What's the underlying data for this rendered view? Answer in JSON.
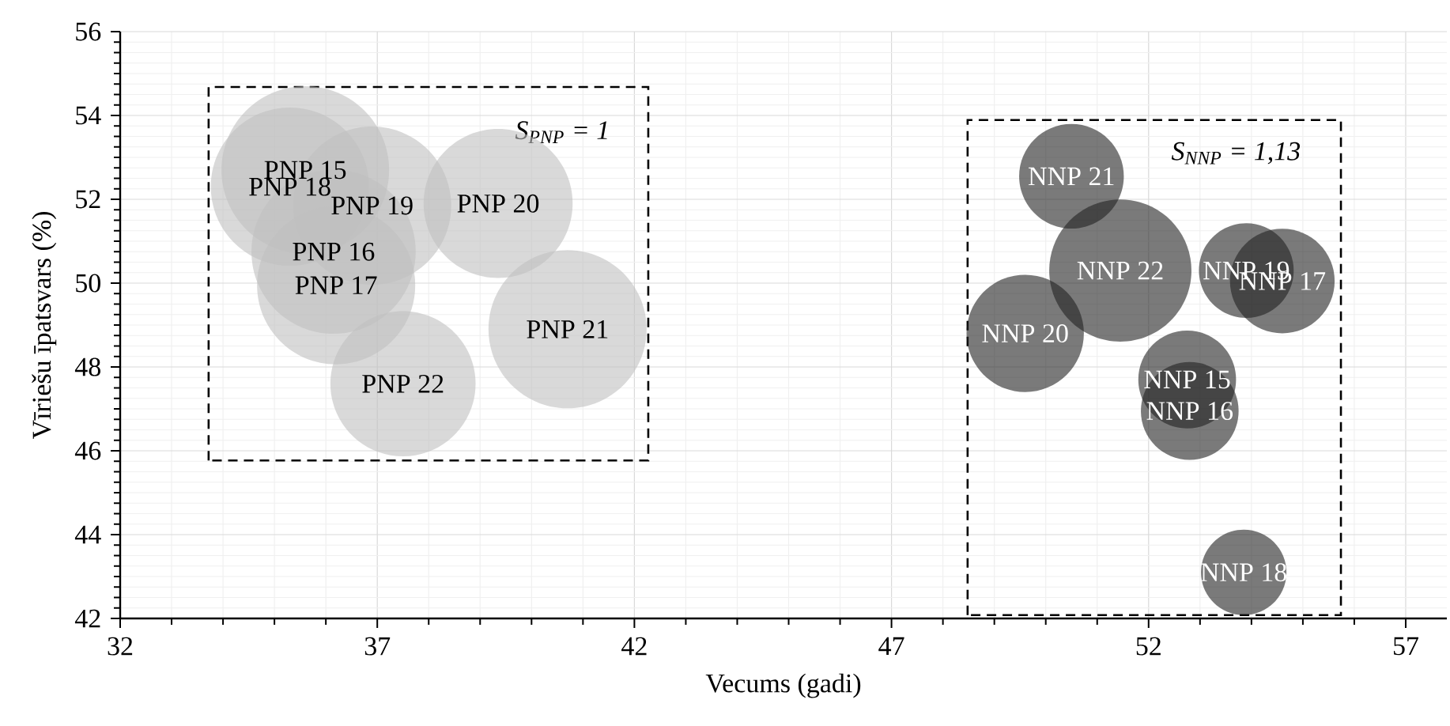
{
  "chart_data": {
    "type": "bubble",
    "xlabel": "Vecums (gadi)",
    "ylabel": "Vīriešu īpatsvars (%)",
    "xlim": [
      32,
      57.8
    ],
    "xticks": [
      32,
      37,
      42,
      47,
      52,
      57
    ],
    "ylim": [
      42,
      56
    ],
    "yticks": [
      42,
      44,
      46,
      48,
      50,
      52,
      54,
      56
    ],
    "grid": true,
    "marker": "circle",
    "annotations": [
      "S$_{PNP}$ = 1",
      "S$_{NNP}$ = 1,13"
    ],
    "series": [
      {
        "name": "PNP 15",
        "color": "#c0c0c0",
        "x": [
          35.6
        ],
        "values": [
          52.7
        ],
        "sizes": [
          1
        ]
      },
      {
        "name": "PNP 18",
        "color": "#c0c0c0",
        "x": [
          35.3
        ],
        "values": [
          52.3
        ],
        "sizes": [
          0.89
        ]
      },
      {
        "name": "PNP 19",
        "color": "#c0c0c0",
        "x": [
          36.9
        ],
        "values": [
          51.85
        ],
        "sizes": [
          0.89
        ]
      },
      {
        "name": "PNP 20",
        "color": "#c0c0c0",
        "x": [
          39.35
        ],
        "values": [
          51.9
        ],
        "sizes": [
          0.79
        ]
      },
      {
        "name": "PNP 16",
        "color": "#c0c0c0",
        "x": [
          36.15
        ],
        "values": [
          50.75
        ],
        "sizes": [
          0.96
        ]
      },
      {
        "name": "PNP 17",
        "color": "#c0c0c0",
        "x": [
          36.2
        ],
        "values": [
          49.95
        ],
        "sizes": [
          0.89
        ]
      },
      {
        "name": "PNP 21",
        "color": "#c0c0c0",
        "x": [
          40.7
        ],
        "values": [
          48.9
        ],
        "sizes": [
          0.89
        ]
      },
      {
        "name": "PNP 22",
        "color": "#c0c0c0",
        "x": [
          37.5
        ],
        "values": [
          47.6
        ],
        "sizes": [
          0.75
        ]
      },
      {
        "name": "NNP 21",
        "color": "#222222",
        "x": [
          50.5
        ],
        "values": [
          52.55
        ],
        "sizes": [
          0.39
        ]
      },
      {
        "name": "NNP 22",
        "color": "#222222",
        "x": [
          51.45
        ],
        "values": [
          50.3
        ],
        "sizes": [
          0.72
        ]
      },
      {
        "name": "NNP 19",
        "color": "#222222",
        "x": [
          53.9
        ],
        "values": [
          50.3
        ],
        "sizes": [
          0.32
        ]
      },
      {
        "name": "NNP 17",
        "color": "#222222",
        "x": [
          54.6
        ],
        "values": [
          50.05
        ],
        "sizes": [
          0.39
        ]
      },
      {
        "name": "NNP 20",
        "color": "#222222",
        "x": [
          49.6
        ],
        "values": [
          48.8
        ],
        "sizes": [
          0.49
        ]
      },
      {
        "name": "NNP 15",
        "color": "#222222",
        "x": [
          52.75
        ],
        "values": [
          47.7
        ],
        "sizes": [
          0.34
        ]
      },
      {
        "name": "NNP 16",
        "color": "#222222",
        "x": [
          52.8
        ],
        "values": [
          46.95
        ],
        "sizes": [
          0.34
        ]
      },
      {
        "name": "NNP 18",
        "color": "#222222",
        "x": [
          53.85
        ],
        "values": [
          43.1
        ],
        "sizes": [
          0.26
        ]
      }
    ]
  }
}
